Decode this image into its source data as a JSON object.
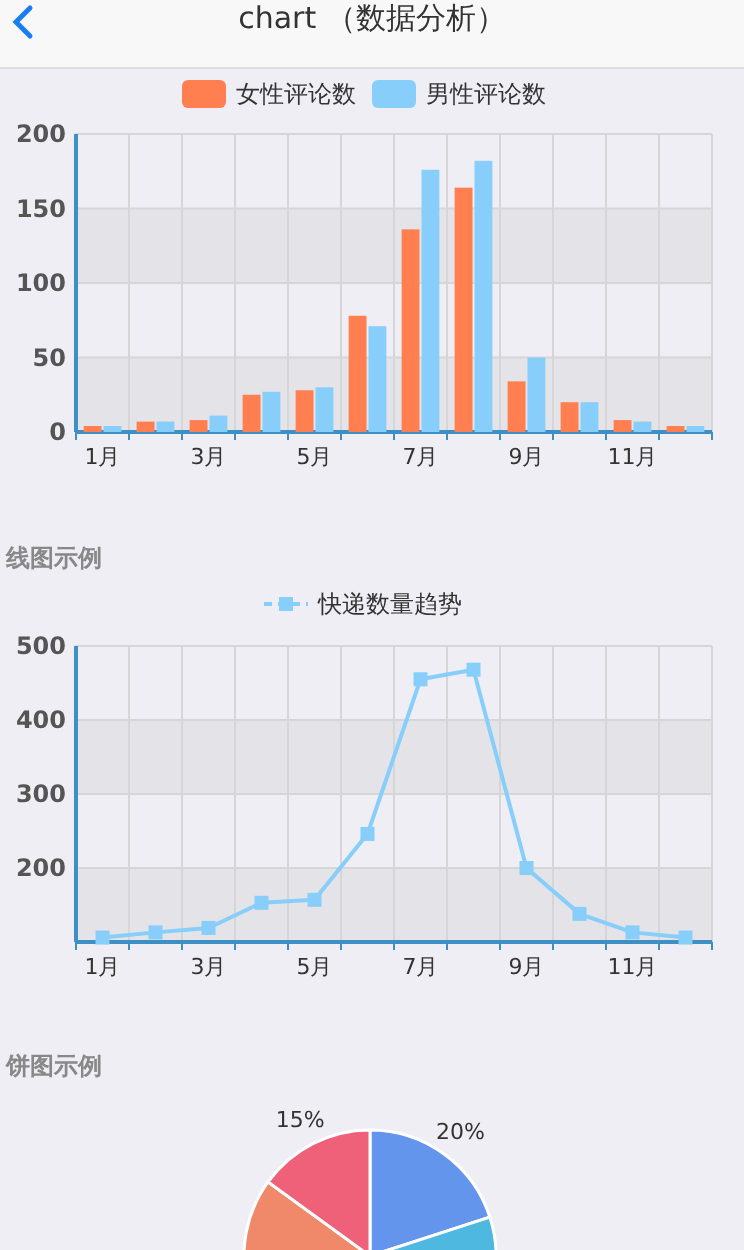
{
  "chart_data": [
    {
      "type": "bar",
      "title": "chart （数据分析）",
      "categories": [
        "1月",
        null,
        "3月",
        null,
        "5月",
        null,
        "7月",
        null,
        "9月",
        null,
        "11月",
        null
      ],
      "series": [
        {
          "name": "女性评论数",
          "color": "#ff7f50",
          "values": [
            4,
            7,
            8,
            25,
            28,
            78,
            136,
            164,
            34,
            20,
            8,
            4
          ]
        },
        {
          "name": "男性评论数",
          "color": "#87cefa",
          "values": [
            4,
            7,
            11,
            27,
            30,
            71,
            176,
            182,
            50,
            20,
            7,
            4
          ]
        }
      ],
      "ylim": [
        0,
        200
      ],
      "yticks": [
        0,
        50,
        100,
        150,
        200
      ],
      "grid": true,
      "legend": "top"
    },
    {
      "type": "line",
      "title": "线图示例",
      "categories": [
        "1月",
        null,
        "3月",
        null,
        "5月",
        null,
        "7月",
        null,
        "9月",
        null,
        "11月",
        null
      ],
      "series": [
        {
          "name": "快递数量趋势",
          "color": "#87cefa",
          "values": [
            106,
            113,
            119,
            153,
            157,
            246,
            455,
            468,
            200,
            138,
            113,
            106
          ]
        }
      ],
      "ylim": [
        100,
        500
      ],
      "yticks": [
        200,
        300,
        400,
        500
      ],
      "grid": true,
      "legend": "top",
      "marker": "square"
    },
    {
      "type": "pie",
      "title": "饼图示例",
      "categories": [
        null,
        null,
        null,
        null
      ],
      "values": [
        20,
        35,
        30,
        15
      ],
      "colors": [
        "#6495ed",
        "#4fb8e0",
        "#f0896a",
        "#ef6079"
      ],
      "value_labels": [
        "20%",
        null,
        null,
        "15%"
      ]
    }
  ]
}
